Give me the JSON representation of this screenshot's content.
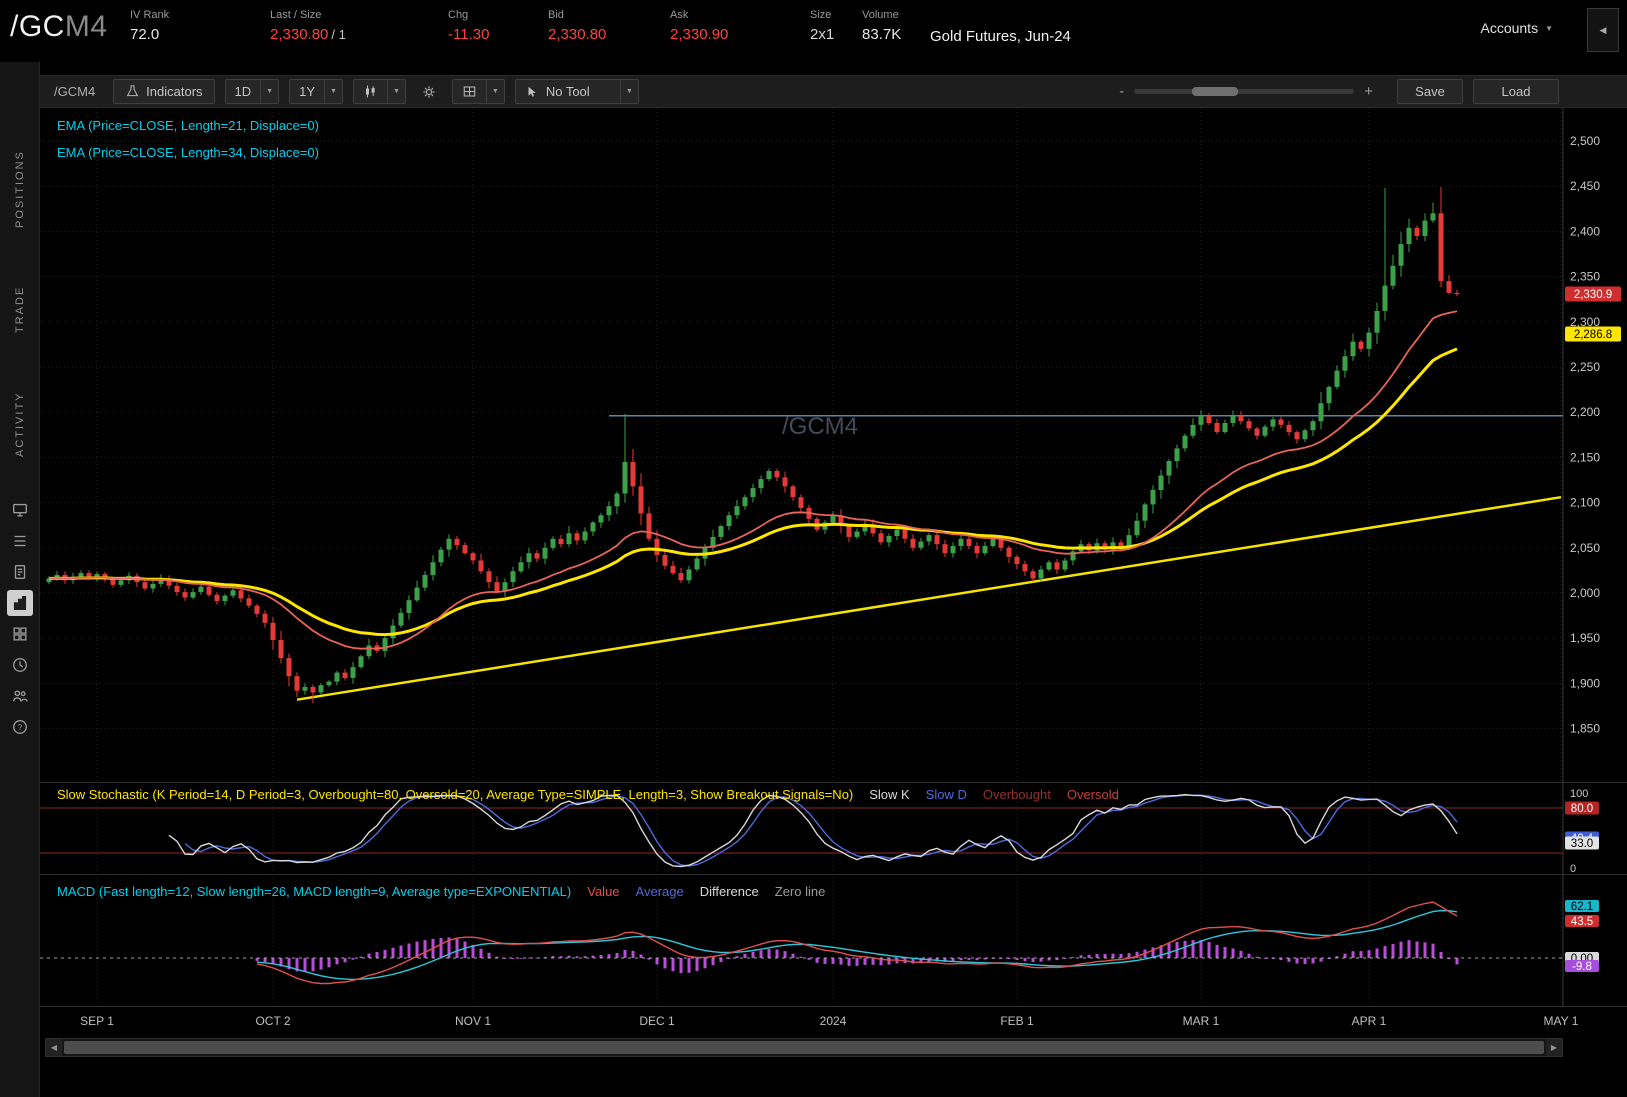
{
  "header": {
    "symbol": "/GC",
    "symbol_suffix": "M4",
    "fields": [
      {
        "label": "IV Rank",
        "value": "72.0",
        "color": "#e8e8e8"
      },
      {
        "label": "Last / Size",
        "value": "2,330.80",
        "extra": "/ 1",
        "color": "#ff4242"
      },
      {
        "label": "Chg",
        "value": "-11.30",
        "color": "#ff4242"
      },
      {
        "label": "Bid",
        "value": "2,330.80",
        "color": "#ff4242"
      },
      {
        "label": "Ask",
        "value": "2,330.90",
        "color": "#ff4242"
      },
      {
        "label": "Size",
        "value": "2x1",
        "color": "#d8d8d8"
      },
      {
        "label": "Volume",
        "value": "83.7K",
        "color": "#e8e8e8"
      }
    ],
    "description": "Gold Futures, Jun-24",
    "accounts_label": "Accounts"
  },
  "sidebar": {
    "tabs": [
      "POSITIONS",
      "TRADE",
      "ACTIVITY"
    ],
    "icons": [
      "monitor-icon",
      "watchlist-icon",
      "order-ticket-icon",
      "chart-icon",
      "layout-grid-icon",
      "history-clock-icon",
      "sharing-people-icon",
      "help-icon"
    ],
    "active_icon": "chart-icon"
  },
  "toolbar": {
    "symbol": "/GCM4",
    "indicators_label": "Indicators",
    "timeframe": "1D",
    "range": "1Y",
    "tool_label": "No Tool",
    "zoom_out": "-",
    "zoom_in": "+",
    "save_label": "Save",
    "load_label": "Load"
  },
  "studies": {
    "ema1": "EMA (Price=CLOSE, Length=21, Displace=0)",
    "ema2": "EMA (Price=CLOSE, Length=34, Displace=0)",
    "stoch_label": "Slow Stochastic (K Period=14, D Period=3, Overbought=80, Oversold=20, Average Type=SIMPLE, Length=3, Show Breakout Signals=No)",
    "stoch_legend": [
      {
        "text": "Slow K",
        "color": "#d9d9d9"
      },
      {
        "text": "Slow D",
        "color": "#4f6bdd"
      },
      {
        "text": "Overbought",
        "color": "#93312e"
      },
      {
        "text": "Oversold",
        "color": "#c4403c"
      }
    ],
    "macd_label": "MACD (Fast length=12, Slow length=26, MACD length=9, Average type=EXPONENTIAL)",
    "macd_legend": [
      {
        "text": "Value",
        "color": "#e05050"
      },
      {
        "text": "Average",
        "color": "#4f6bdd"
      },
      {
        "text": "Difference",
        "color": "#d9d9d9"
      },
      {
        "text": "Zero line",
        "color": "#9a9a9a"
      }
    ]
  },
  "chart_data": {
    "type": "candlestick",
    "symbol": "/GCM4",
    "watermark": "/GCM4",
    "description": "Gold Futures Jun-24 daily candles, 1 year, with EMA21 (red), EMA34 (yellow), yellow up-trendline, horizontal level 2196, Slow Stochastic and MACD sub-studies",
    "first_open": 2012,
    "closes": [
      2016,
      2020,
      2014,
      2018,
      2022,
      2017,
      2021,
      2015,
      2009,
      2014,
      2019,
      2012,
      2005,
      2010,
      2016,
      2008,
      2001,
      1995,
      2001,
      2007,
      1998,
      1991,
      1997,
      2003,
      1994,
      1986,
      1977,
      1967,
      1948,
      1928,
      1908,
      1892,
      1896,
      1890,
      1898,
      1902,
      1912,
      1906,
      1918,
      1930,
      1942,
      1936,
      1950,
      1964,
      1978,
      1992,
      2006,
      2020,
      2034,
      2048,
      2060,
      2053,
      2044,
      2036,
      2024,
      2012,
      2002,
      2012,
      2024,
      2034,
      2044,
      2038,
      2050,
      2060,
      2054,
      2066,
      2058,
      2068,
      2078,
      2086,
      2096,
      2110,
      2145,
      2118,
      2088,
      2060,
      2042,
      2030,
      2022,
      2014,
      2026,
      2038,
      2050,
      2062,
      2074,
      2086,
      2096,
      2106,
      2116,
      2126,
      2135,
      2128,
      2118,
      2106,
      2094,
      2082,
      2070,
      2078,
      2086,
      2074,
      2062,
      2068,
      2076,
      2066,
      2056,
      2063,
      2070,
      2060,
      2050,
      2057,
      2064,
      2054,
      2044,
      2052,
      2060,
      2052,
      2044,
      2052,
      2060,
      2050,
      2040,
      2032,
      2024,
      2016,
      2026,
      2034,
      2026,
      2036,
      2046,
      2054,
      2047,
      2055,
      2048,
      2056,
      2050,
      2064,
      2080,
      2098,
      2114,
      2130,
      2146,
      2160,
      2174,
      2186,
      2196,
      2188,
      2178,
      2188,
      2196,
      2190,
      2182,
      2174,
      2184,
      2192,
      2186,
      2178,
      2170,
      2180,
      2190,
      2210,
      2228,
      2246,
      2262,
      2278,
      2270,
      2288,
      2312,
      2340,
      2362,
      2386,
      2404,
      2395,
      2412,
      2420,
      2345,
      2332,
      2330.8
    ],
    "wick_overrides": {
      "33": {
        "low": 1878
      },
      "72": {
        "high": 2198,
        "low": 2100
      },
      "167": {
        "high": 2448
      },
      "173": {
        "high": 2432
      },
      "174": {
        "low": 2338
      }
    },
    "x_ticks": [
      {
        "label": "SEP 1",
        "i": 6
      },
      {
        "label": "OCT 2",
        "i": 28
      },
      {
        "label": "NOV 1",
        "i": 53
      },
      {
        "label": "DEC 1",
        "i": 76
      },
      {
        "label": "2024",
        "i": 98
      },
      {
        "label": "FEB 1",
        "i": 121
      },
      {
        "label": "MAR 1",
        "i": 144
      },
      {
        "label": "APR 1",
        "i": 165
      },
      {
        "label": "MAY 1",
        "i": 189
      }
    ],
    "y_axis": {
      "labels": [
        "2,500",
        "2,450",
        "2,400",
        "2,350",
        "2,300",
        "2,250",
        "2,200",
        "2,150",
        "2,100",
        "2,050",
        "2,000",
        "1,950",
        "1,900",
        "1,850"
      ],
      "top_value": 2500,
      "step": 50
    },
    "trendline": {
      "i1": 31,
      "p1": 1882,
      "i2": 189,
      "p2": 2106
    },
    "hline": {
      "price": 2196,
      "from_i": 70
    },
    "emas": [
      {
        "length": 21,
        "color": "#e8645a"
      },
      {
        "length": 34,
        "color": "#ffe600"
      }
    ],
    "badges": {
      "last": {
        "text": "2,330.9",
        "value": 2330.9,
        "bg": "#cf2e2e",
        "fg": "#ffffff"
      },
      "ema": {
        "text": "2,286.8",
        "value": 2286.8,
        "bg": "#ffe600",
        "fg": "#000000"
      }
    },
    "stoch": {
      "overbought": 80,
      "oversold": 20,
      "axis_top": "100",
      "axis_bottom": "0",
      "badges": [
        {
          "text": "80.0",
          "value": 80,
          "bg": "#b32424",
          "fg": "#ffffff"
        },
        {
          "text": "40.4",
          "value": 40.4,
          "bg": "#3f5bd6",
          "fg": "#ffffff"
        },
        {
          "text": "33.0",
          "value": 33,
          "bg": "#e3e3e3",
          "fg": "#000000"
        }
      ]
    },
    "macd": {
      "badges": [
        {
          "text": "62.1",
          "value": 62.1,
          "bg": "#19b7cc",
          "fg": "#000000"
        },
        {
          "text": "43.5",
          "value": 43.5,
          "bg": "#cf2e2e",
          "fg": "#ffffff"
        },
        {
          "text": "0.00",
          "value": 0,
          "bg": "#d9d9d9",
          "fg": "#000000"
        },
        {
          "text": "-9.8",
          "value": -9.8,
          "bg": "#a64ddb",
          "fg": "#ffffff"
        }
      ]
    },
    "colors": {
      "up": "#3fa04b",
      "down": "#e23b39",
      "ema21": "#e8645a",
      "ema34": "#ffe600",
      "trendline": "#f5e400",
      "hline": "#5d86a8",
      "slow_k": "#d9d9d9",
      "slow_d": "#4f6bdd",
      "ob_os": "#8a2727",
      "macd_value": "#e05050",
      "macd_avg": "#2ec6d8",
      "macd_hist": "#b84fd9",
      "grid": "#242424",
      "axis_text": "#c9c9c9",
      "watermark": "#454b57"
    }
  }
}
